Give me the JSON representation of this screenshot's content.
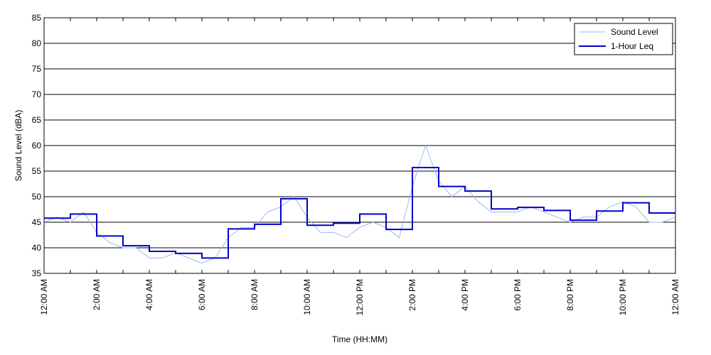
{
  "chart_data": {
    "type": "line",
    "xlabel": "Time (HH:MM)",
    "ylabel": "Sound Level (dBA)",
    "ylim": [
      35,
      85
    ],
    "yticks": [
      35,
      40,
      45,
      50,
      55,
      60,
      65,
      70,
      75,
      80,
      85
    ],
    "xlim_hours": [
      0,
      24
    ],
    "xticks": [
      {
        "hour": 0,
        "label": "12:00 AM"
      },
      {
        "hour": 2,
        "label": "2:00 AM"
      },
      {
        "hour": 4,
        "label": "4:00 AM"
      },
      {
        "hour": 6,
        "label": "6:00 AM"
      },
      {
        "hour": 8,
        "label": "8:00 AM"
      },
      {
        "hour": 10,
        "label": "10:00 AM"
      },
      {
        "hour": 12,
        "label": "12:00 PM"
      },
      {
        "hour": 14,
        "label": "2:00 PM"
      },
      {
        "hour": 16,
        "label": "4:00 PM"
      },
      {
        "hour": 18,
        "label": "6:00 PM"
      },
      {
        "hour": 20,
        "label": "8:00 PM"
      },
      {
        "hour": 22,
        "label": "10:00 PM"
      },
      {
        "hour": 24,
        "label": "12:00 AM"
      }
    ],
    "grid": "horizontal",
    "legend_position": "top-right",
    "series": [
      {
        "name": "Sound Level",
        "color": "#9db8f0",
        "hours": [
          0,
          0.5,
          1,
          1.5,
          2,
          2.5,
          3,
          3.5,
          4,
          4.5,
          5,
          5.5,
          6,
          6.5,
          7,
          7.5,
          8,
          8.5,
          9,
          9.5,
          10,
          10.5,
          11,
          11.5,
          12,
          12.5,
          13,
          13.5,
          14,
          14.5,
          15,
          15.5,
          16,
          16.5,
          17,
          17.5,
          18,
          18.5,
          19,
          19.5,
          20,
          20.5,
          21,
          21.5,
          22,
          22.5,
          23,
          23.5,
          24
        ],
        "values": [
          45,
          46,
          45,
          47,
          43,
          41,
          40,
          40,
          38,
          38,
          39,
          38,
          37,
          38,
          42,
          44,
          44,
          47,
          48,
          50,
          46,
          43,
          43,
          42,
          44,
          45,
          44,
          42,
          52,
          60,
          53,
          50,
          52,
          49,
          47,
          47,
          47,
          48,
          47,
          46,
          45,
          46,
          46,
          48,
          49,
          48,
          45,
          45,
          46
        ]
      },
      {
        "name": "1-Hour Leq",
        "color": "#0000cc",
        "hours": [
          0,
          1,
          2,
          3,
          4,
          5,
          6,
          7,
          8,
          9,
          10,
          11,
          12,
          13,
          14,
          15,
          16,
          17,
          18,
          19,
          20,
          21,
          22,
          23
        ],
        "values": [
          45.8,
          46.6,
          42.3,
          40.4,
          39.3,
          38.9,
          38.0,
          43.7,
          44.6,
          49.6,
          44.4,
          44.8,
          46.6,
          43.6,
          55.7,
          52.0,
          51.1,
          47.6,
          47.9,
          47.3,
          45.4,
          47.2,
          48.8,
          46.8
        ]
      }
    ]
  }
}
